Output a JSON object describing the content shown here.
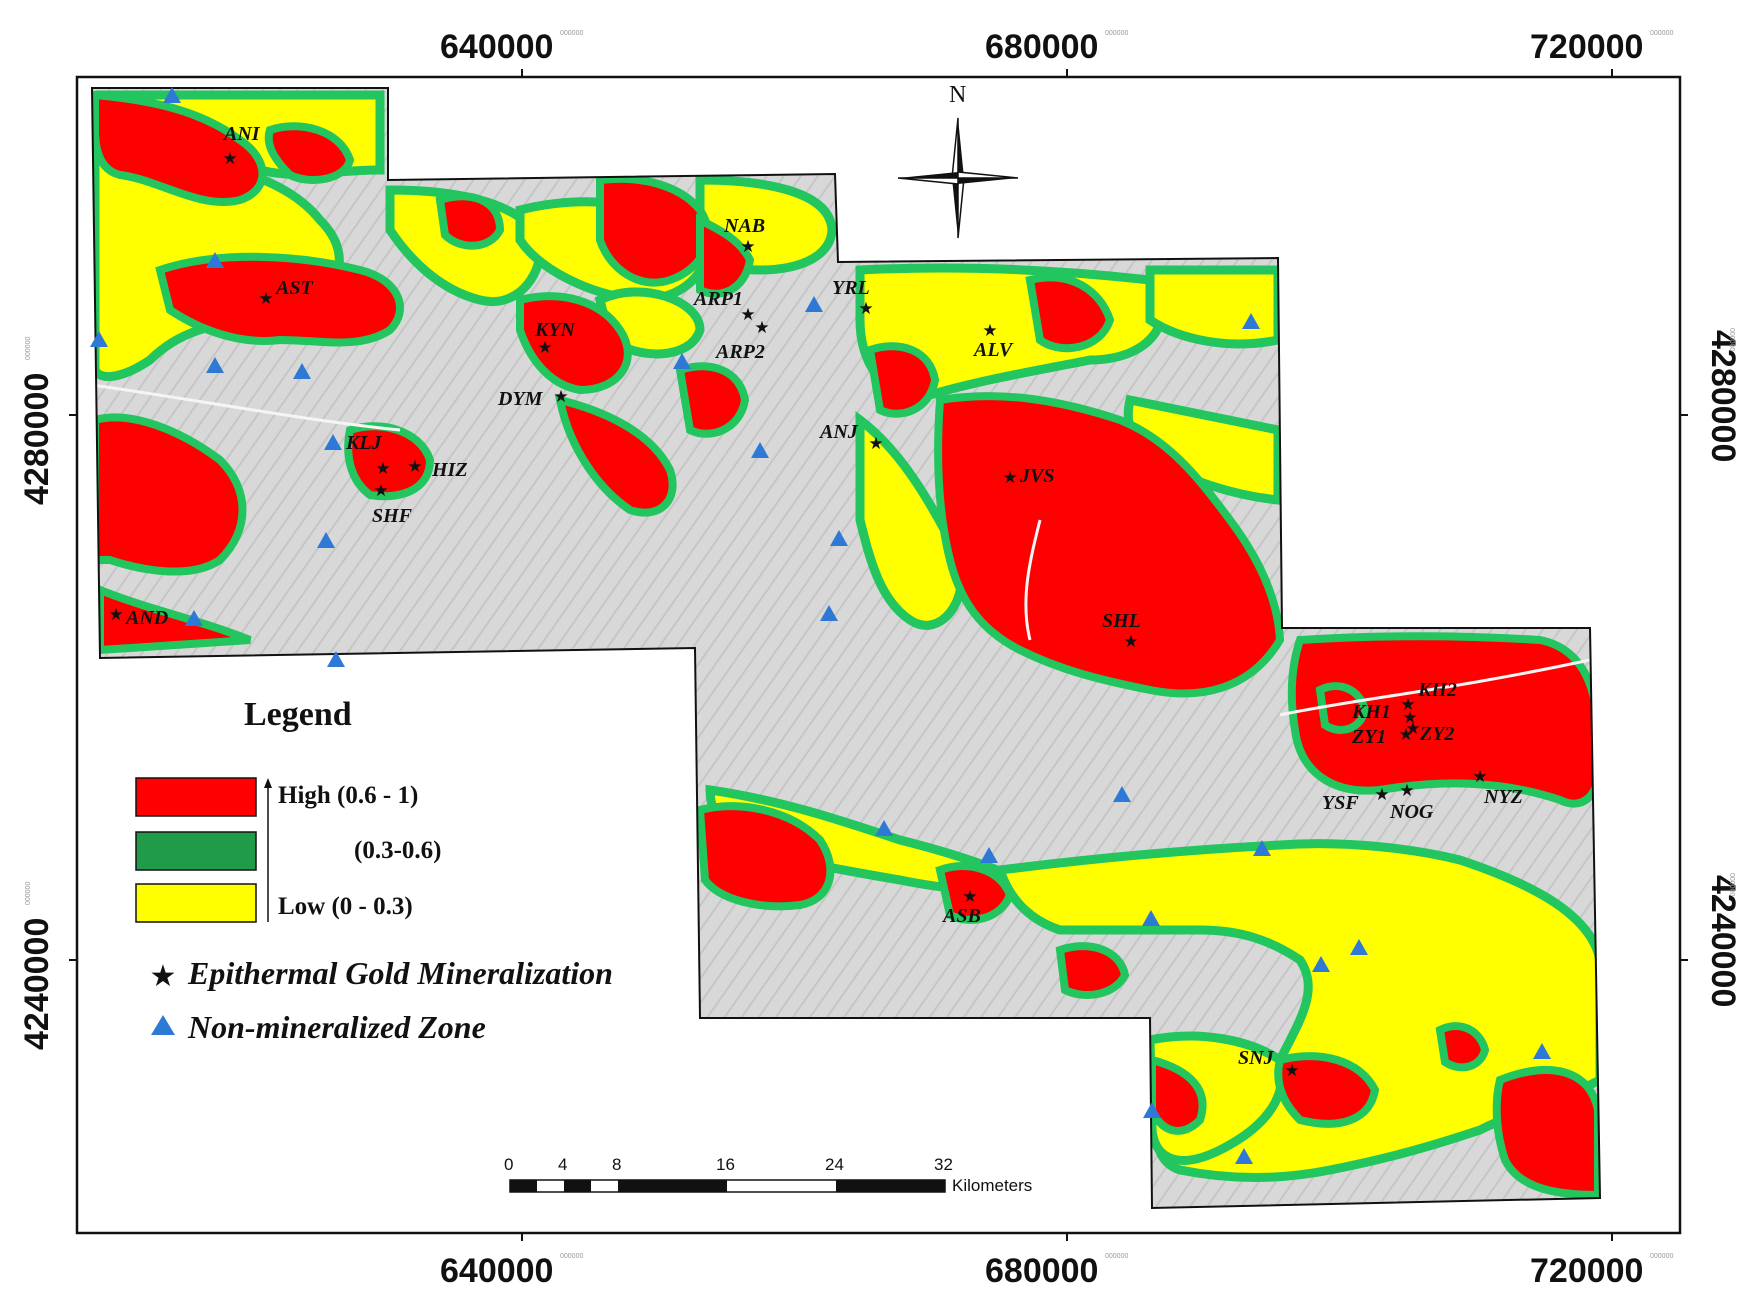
{
  "map": {
    "x_ticks": [
      "640000",
      "680000",
      "720000"
    ],
    "y_ticks": [
      "4280000",
      "4240000"
    ],
    "tick_superscript": "000000",
    "north_label": "N",
    "colors": {
      "high": "#ff0000",
      "medium": "#22c55e",
      "medium_legend": "#1f9b4a",
      "low": "#ffff00",
      "background": "#d9d9d9",
      "star": "#111111",
      "triangle": "#2f79d6"
    }
  },
  "legend": {
    "title": "Legend",
    "classes": [
      {
        "label": "High (0.6 -  1)",
        "color": "#ff0000"
      },
      {
        "label": "(0.3-0.6)",
        "color": "#1f9b4a"
      },
      {
        "label": "Low  (0 -  0.3)",
        "color": "#ffff00"
      }
    ],
    "symbols": [
      {
        "label": "Epithermal Gold Mineralization",
        "icon": "star-icon"
      },
      {
        "label": "Non-mineralized Zone",
        "icon": "triangle-icon"
      }
    ]
  },
  "scale_bar": {
    "labels": [
      "0",
      "4",
      "8",
      "16",
      "24",
      "32"
    ],
    "unit": "Kilometers"
  },
  "sites": [
    "ANI",
    "AST",
    "NAB",
    "ARP1",
    "ARP2",
    "YRL",
    "KYN",
    "ALV",
    "DYM",
    "ANJ",
    "KLJ",
    "HIZ",
    "SHF",
    "JVS",
    "AND",
    "SHL",
    "KH2",
    "KH1",
    "ZY1",
    "ZY2",
    "YSF",
    "NOG",
    "NYZ",
    "ASB",
    "SNJ"
  ]
}
